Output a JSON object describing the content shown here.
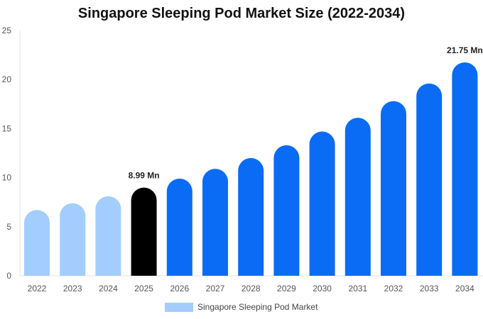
{
  "chart_data": {
    "type": "bar",
    "title": "Singapore Sleeping Pod Market Size (2022-2034)",
    "categories": [
      "2022",
      "2023",
      "2024",
      "2025",
      "2026",
      "2027",
      "2028",
      "2029",
      "2030",
      "2031",
      "2032",
      "2033",
      "2034"
    ],
    "series": [
      {
        "name": "Singapore Sleeping Pod Market",
        "values": [
          6.7,
          7.4,
          8.1,
          8.99,
          9.9,
          10.9,
          12.0,
          13.3,
          14.7,
          16.1,
          17.8,
          19.6,
          21.75
        ]
      }
    ],
    "ylim": [
      0,
      25
    ],
    "yticks": [
      0,
      5,
      10,
      15,
      20,
      25
    ],
    "data_labels": [
      {
        "category": "2025",
        "text": "8.99 Mn"
      },
      {
        "category": "2034",
        "text": "21.75 Mn"
      }
    ],
    "colors": {
      "historical": "#a3cdfd",
      "current": "#000000",
      "forecast": "#0a6cf5",
      "legend": "#a3cdfd"
    },
    "historical_count": 3,
    "current_index": 3,
    "legend_placement": "bottom-center",
    "grid": false
  }
}
